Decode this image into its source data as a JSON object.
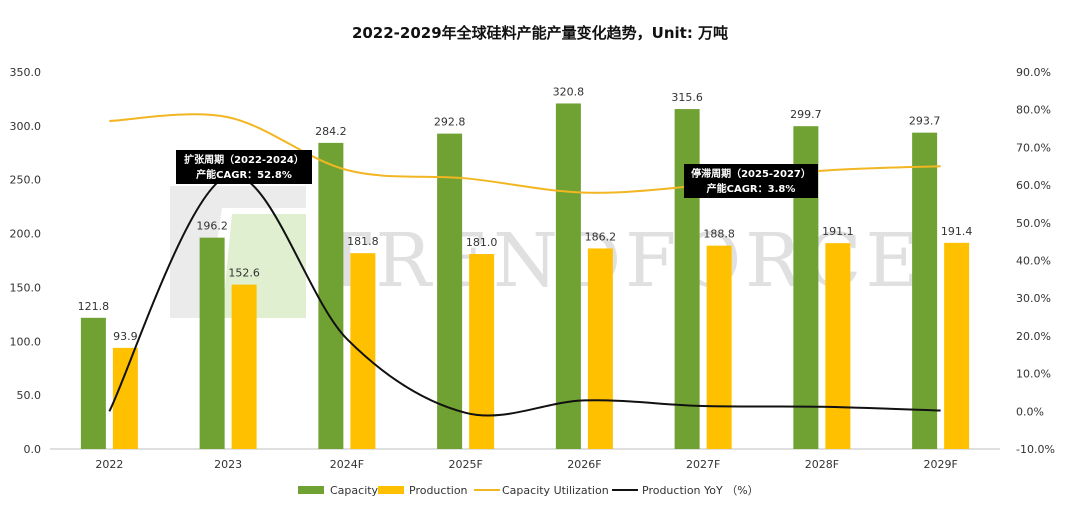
{
  "chart_data": {
    "type": "bar+line",
    "title": "2022-2029年全球硅料产能产量变化趋势，Unit: 万吨",
    "categories": [
      "2022",
      "2023",
      "2024F",
      "2025F",
      "2026F",
      "2027F",
      "2028F",
      "2029F"
    ],
    "series": [
      {
        "name": "Capacity",
        "type": "bar",
        "axis": "left",
        "color": "#70a133",
        "values": [
          121.8,
          196.2,
          284.2,
          292.8,
          320.8,
          315.6,
          299.7,
          293.7
        ]
      },
      {
        "name": "Production",
        "type": "bar",
        "axis": "left",
        "color": "#ffc000",
        "values": [
          93.9,
          152.6,
          181.8,
          181.0,
          186.2,
          188.8,
          191.1,
          191.4
        ]
      },
      {
        "name": "Capacity Utilization",
        "type": "line",
        "axis": "right",
        "color": "#f2b622",
        "values": [
          77,
          78,
          64,
          61.8,
          58,
          60,
          63.8,
          65
        ]
      },
      {
        "name": "Production YoY （%）",
        "type": "line",
        "axis": "right",
        "color": "#111111",
        "values": [
          0,
          62.5,
          19.2,
          -0.4,
          2.9,
          1.4,
          1.2,
          0.2
        ]
      }
    ],
    "left_axis": {
      "min": 0,
      "max": 350,
      "step": 50,
      "tick_labels": [
        "0.0",
        "50.0",
        "100.0",
        "150.0",
        "200.0",
        "250.0",
        "300.0",
        "350.0"
      ]
    },
    "right_axis": {
      "min": -10,
      "max": 90,
      "step": 10,
      "tick_labels": [
        "-10.0%",
        "0.0%",
        "10.0%",
        "20.0%",
        "30.0%",
        "40.0%",
        "50.0%",
        "60.0%",
        "70.0%",
        "80.0%",
        "90.0%"
      ]
    },
    "annotations": [
      {
        "name": "expansion",
        "line1": "扩张周期（2022-2024）",
        "line2": "产能CAGR：52.8%"
      },
      {
        "name": "stagnation",
        "line1": "停滞周期（2025-2027）",
        "line2": "产能CAGR：3.8%"
      }
    ],
    "legend_position": "bottom",
    "watermark": "TRENDFORCE"
  }
}
